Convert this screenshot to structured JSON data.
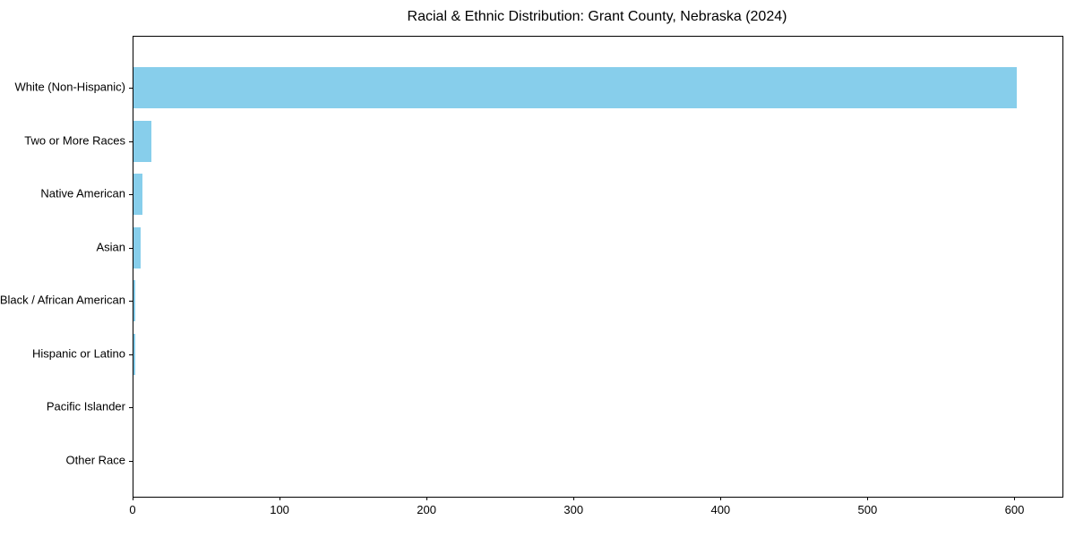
{
  "chart_data": {
    "type": "bar",
    "orientation": "horizontal",
    "title": "Racial & Ethnic Distribution: Grant County, Nebraska (2024)",
    "categories": [
      "White (Non-Hispanic)",
      "Two or More Races",
      "Native American",
      "Asian",
      "Black / African American",
      "Hispanic or Latino",
      "Pacific Islander",
      "Other Race"
    ],
    "values": [
      601,
      12,
      6,
      5,
      1,
      1,
      0,
      0
    ],
    "xlabel": "",
    "ylabel": "",
    "xlim": [
      0,
      632
    ],
    "xticks": [
      0,
      100,
      200,
      300,
      400,
      500,
      600
    ],
    "bar_color": "#87CEEB",
    "axis_color": "#000000",
    "text_color": "#000000",
    "background_color": "#FFFFFF",
    "grid": false,
    "legend": null
  }
}
